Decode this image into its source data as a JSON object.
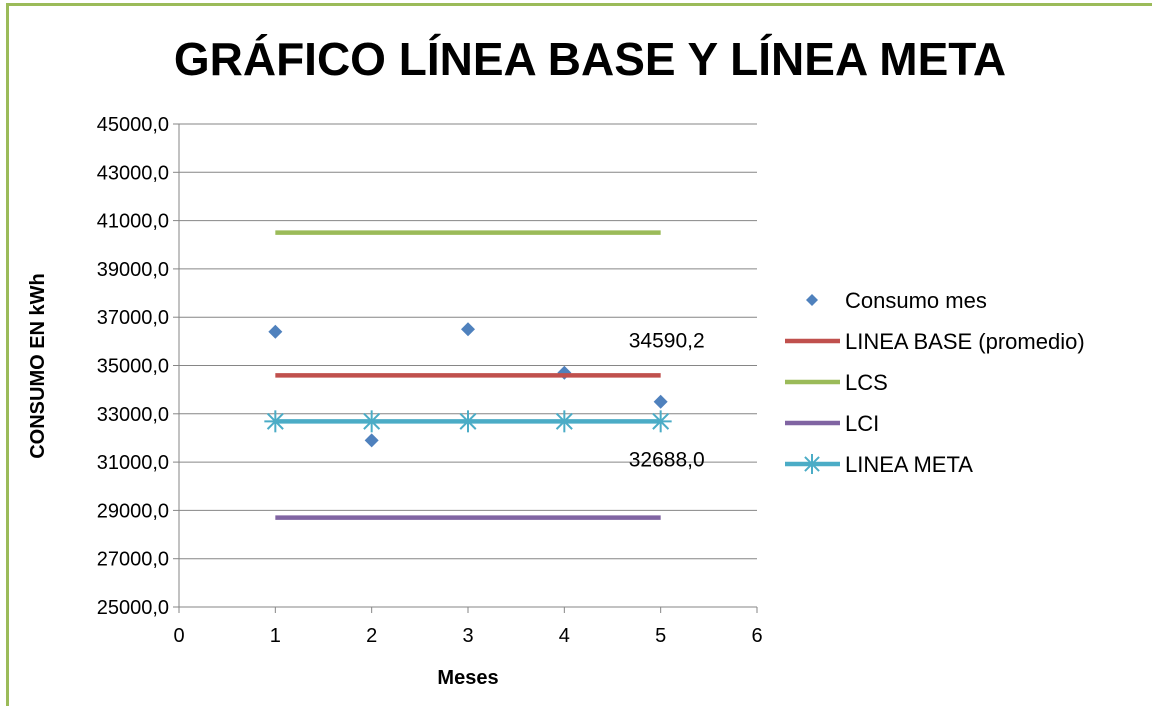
{
  "chart_data": {
    "type": "scatter",
    "title": "GRÁFICO LÍNEA BASE Y LÍNEA META",
    "xlabel": "Meses",
    "ylabel": "CONSUMO EN kWh",
    "xlim": [
      0,
      6
    ],
    "ylim": [
      25000,
      45000
    ],
    "x_ticks": [
      "0",
      "1",
      "2",
      "3",
      "4",
      "5",
      "6"
    ],
    "y_ticks": [
      "25000,0",
      "27000,0",
      "29000,0",
      "31000,0",
      "33000,0",
      "35000,0",
      "37000,0",
      "39000,0",
      "41000,0",
      "43000,0",
      "45000,0"
    ],
    "grid": true,
    "legend_position": "right",
    "series": [
      {
        "name": "Consumo mes",
        "kind": "markers",
        "marker": "diamond",
        "color": "#4f81bd",
        "x": [
          1,
          2,
          3,
          4,
          5
        ],
        "y": [
          36400,
          31900,
          36500,
          34700,
          33500
        ]
      },
      {
        "name": "LINEA BASE (promedio)",
        "kind": "line",
        "color": "#c0504d",
        "x": [
          1,
          2,
          3,
          4,
          5
        ],
        "y": [
          34590.2,
          34590.2,
          34590.2,
          34590.2,
          34590.2
        ]
      },
      {
        "name": "LCS",
        "kind": "line",
        "color": "#9bbb59",
        "x": [
          1,
          2,
          3,
          4,
          5
        ],
        "y": [
          40500,
          40500,
          40500,
          40500,
          40500
        ]
      },
      {
        "name": "LCI",
        "kind": "line",
        "color": "#8064a2",
        "x": [
          1,
          2,
          3,
          4,
          5
        ],
        "y": [
          28700,
          28700,
          28700,
          28700,
          28700
        ]
      },
      {
        "name": "LINEA META",
        "kind": "line",
        "marker": "star",
        "color": "#4bacc6",
        "x": [
          1,
          2,
          3,
          4,
          5
        ],
        "y": [
          32688,
          32688,
          32688,
          32688,
          32688
        ]
      }
    ],
    "annotations": [
      {
        "text": "34590,2",
        "x": 5,
        "y": 34590.2
      },
      {
        "text": "32688,0",
        "x": 5,
        "y": 32688
      }
    ]
  }
}
